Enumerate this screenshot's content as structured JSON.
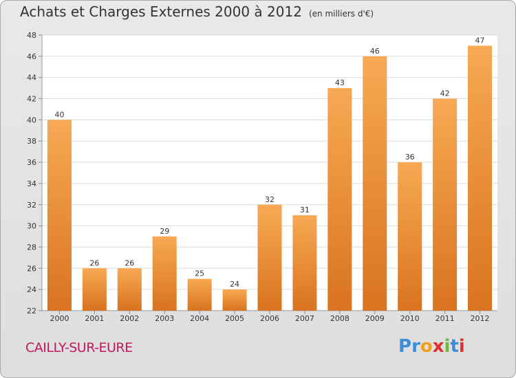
{
  "chart_data": {
    "type": "bar",
    "title": "Achats et Charges Externes 2000 à 2012",
    "subtitle": "(en milliers d'€)",
    "categories": [
      "2000",
      "2001",
      "2002",
      "2003",
      "2004",
      "2005",
      "2006",
      "2007",
      "2008",
      "2009",
      "2010",
      "2011",
      "2012"
    ],
    "values": [
      40,
      26,
      26,
      29,
      25,
      24,
      32,
      31,
      43,
      46,
      36,
      42,
      47
    ],
    "ylim": [
      22,
      48
    ],
    "yticks": [
      22,
      24,
      26,
      28,
      30,
      32,
      34,
      36,
      38,
      40,
      42,
      44,
      46,
      48
    ],
    "grid": true,
    "bar_color_top": "#f7a953",
    "bar_color_bottom": "#d9731f"
  },
  "commune": "CAILLY-SUR-EURE",
  "logo": {
    "letters": [
      "P",
      "r",
      "o",
      "x",
      "i",
      "t",
      "i"
    ],
    "colors": [
      "#3b8ed6",
      "#3b8ed6",
      "#f0a020",
      "#e03030",
      "#6cba3c",
      "#3b8ed6",
      "#e03030"
    ]
  }
}
